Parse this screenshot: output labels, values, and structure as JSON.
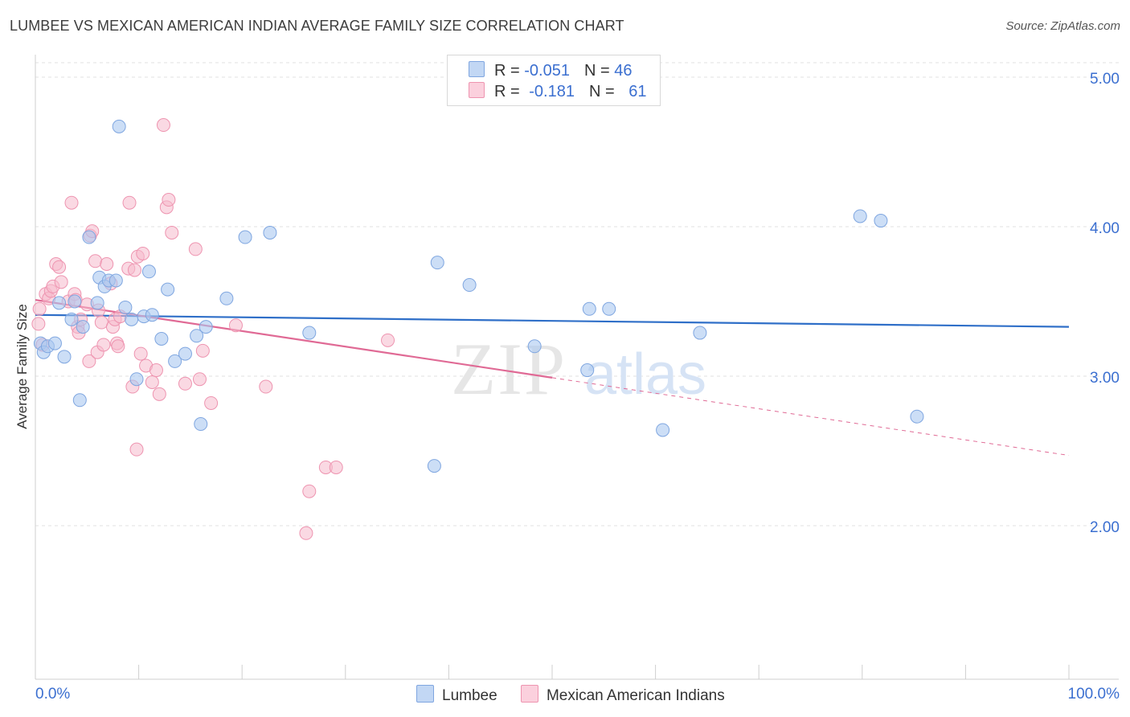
{
  "title": "LUMBEE VS MEXICAN AMERICAN INDIAN AVERAGE FAMILY SIZE CORRELATION CHART",
  "source": "Source: ZipAtlas.com",
  "watermark": {
    "zip": "ZIP",
    "atlas": "atlas"
  },
  "legend": {
    "lumbee": {
      "r_label": "R = ",
      "r_value": "-0.051",
      "n_label": "N = ",
      "n_value": "46"
    },
    "mexican": {
      "r_label": "R = ",
      "r_value": "-0.181",
      "n_label": "N = ",
      "n_value": "61"
    }
  },
  "bottom_legend": {
    "lumbee": "Lumbee",
    "mexican": "Mexican American Indians"
  },
  "colors": {
    "lumbee_fill": "#aac8f0",
    "lumbee_stroke": "#7fa6e0",
    "lumbee_line": "#2f6fc8",
    "mexican_fill": "#f6b9cc",
    "mexican_stroke": "#ee94b0",
    "mexican_line": "#e06a95",
    "axis_label": "#3b6fd0"
  },
  "chart_data": {
    "type": "scatter",
    "title": "LUMBEE VS MEXICAN AMERICAN INDIAN AVERAGE FAMILY SIZE CORRELATION CHART",
    "xlabel": "",
    "ylabel": "Average Family Size",
    "xlim": [
      0,
      100
    ],
    "ylim": [
      1.0,
      5.15
    ],
    "x_tick_labels": [
      "0.0%",
      "100.0%"
    ],
    "y_ticks": [
      2.0,
      3.0,
      4.0,
      5.0
    ],
    "y_tick_labels": [
      "2.00",
      "3.00",
      "4.00",
      "5.00"
    ],
    "grid": true,
    "legend_position": "top-center",
    "series": [
      {
        "name": "Lumbee",
        "trend": {
          "x": [
            0,
            100
          ],
          "y": [
            3.41,
            3.33
          ],
          "dashed_from": null
        },
        "points": [
          [
            0.5,
            3.22
          ],
          [
            0.8,
            3.16
          ],
          [
            1.2,
            3.2
          ],
          [
            1.9,
            3.22
          ],
          [
            2.3,
            3.49
          ],
          [
            2.8,
            3.13
          ],
          [
            3.5,
            3.38
          ],
          [
            3.8,
            3.5
          ],
          [
            4.3,
            2.84
          ],
          [
            4.6,
            3.33
          ],
          [
            5.2,
            3.93
          ],
          [
            6.0,
            3.49
          ],
          [
            6.2,
            3.66
          ],
          [
            6.7,
            3.6
          ],
          [
            7.1,
            3.64
          ],
          [
            7.8,
            3.64
          ],
          [
            8.1,
            4.67
          ],
          [
            8.7,
            3.46
          ],
          [
            9.3,
            3.38
          ],
          [
            9.8,
            2.98
          ],
          [
            10.5,
            3.4
          ],
          [
            11.0,
            3.7
          ],
          [
            11.3,
            3.41
          ],
          [
            12.2,
            3.25
          ],
          [
            12.8,
            3.58
          ],
          [
            13.5,
            3.1
          ],
          [
            14.5,
            3.15
          ],
          [
            15.6,
            3.27
          ],
          [
            16.0,
            2.68
          ],
          [
            16.5,
            3.33
          ],
          [
            18.5,
            3.52
          ],
          [
            20.3,
            3.93
          ],
          [
            22.7,
            3.96
          ],
          [
            26.5,
            3.29
          ],
          [
            38.6,
            2.4
          ],
          [
            38.9,
            3.76
          ],
          [
            42.0,
            3.61
          ],
          [
            48.3,
            3.2
          ],
          [
            53.4,
            3.04
          ],
          [
            53.6,
            3.45
          ],
          [
            55.5,
            3.45
          ],
          [
            60.7,
            2.64
          ],
          [
            64.3,
            3.29
          ],
          [
            79.8,
            4.07
          ],
          [
            81.8,
            4.04
          ],
          [
            85.3,
            2.73
          ]
        ]
      },
      {
        "name": "Mexican American Indians",
        "trend": {
          "x": [
            0,
            100
          ],
          "y": [
            3.51,
            2.47
          ],
          "dashed_from": 50
        },
        "points": [
          [
            0.3,
            3.35
          ],
          [
            0.4,
            3.45
          ],
          [
            0.7,
            3.21
          ],
          [
            1.0,
            3.55
          ],
          [
            1.3,
            3.52
          ],
          [
            1.5,
            3.57
          ],
          [
            1.7,
            3.6
          ],
          [
            2.0,
            3.75
          ],
          [
            2.3,
            3.73
          ],
          [
            2.5,
            3.63
          ],
          [
            3.2,
            3.5
          ],
          [
            3.5,
            4.16
          ],
          [
            3.8,
            3.55
          ],
          [
            3.9,
            3.51
          ],
          [
            4.1,
            3.33
          ],
          [
            4.2,
            3.29
          ],
          [
            4.4,
            3.38
          ],
          [
            5.0,
            3.48
          ],
          [
            5.2,
            3.1
          ],
          [
            5.3,
            3.94
          ],
          [
            5.5,
            3.97
          ],
          [
            5.8,
            3.77
          ],
          [
            6.0,
            3.16
          ],
          [
            6.1,
            3.44
          ],
          [
            6.4,
            3.36
          ],
          [
            6.6,
            3.21
          ],
          [
            6.9,
            3.75
          ],
          [
            7.3,
            3.62
          ],
          [
            7.5,
            3.33
          ],
          [
            7.7,
            3.38
          ],
          [
            7.9,
            3.22
          ],
          [
            8.0,
            3.2
          ],
          [
            8.2,
            3.4
          ],
          [
            9.0,
            3.72
          ],
          [
            9.1,
            4.16
          ],
          [
            9.4,
            2.93
          ],
          [
            9.6,
            3.71
          ],
          [
            9.9,
            3.8
          ],
          [
            9.8,
            2.51
          ],
          [
            10.2,
            3.15
          ],
          [
            10.4,
            3.82
          ],
          [
            10.7,
            3.07
          ],
          [
            11.3,
            2.96
          ],
          [
            11.7,
            3.04
          ],
          [
            12.0,
            2.88
          ],
          [
            12.4,
            4.68
          ],
          [
            12.7,
            4.13
          ],
          [
            12.9,
            4.18
          ],
          [
            13.2,
            3.96
          ],
          [
            14.5,
            2.95
          ],
          [
            15.5,
            3.85
          ],
          [
            15.9,
            2.98
          ],
          [
            16.2,
            3.17
          ],
          [
            17.0,
            2.82
          ],
          [
            19.4,
            3.34
          ],
          [
            22.3,
            2.93
          ],
          [
            26.2,
            1.95
          ],
          [
            26.5,
            2.23
          ],
          [
            28.1,
            2.39
          ],
          [
            29.1,
            2.39
          ],
          [
            34.1,
            3.24
          ]
        ]
      }
    ]
  }
}
